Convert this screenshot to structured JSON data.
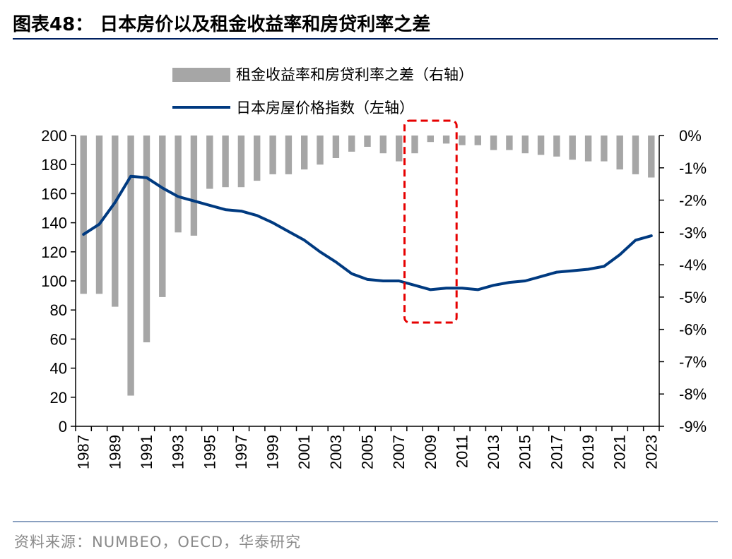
{
  "figure": {
    "title": "图表48：  日本房价以及租金收益率和房贷利率之差",
    "source": "资料来源：NUMBEO，OECD，华泰研究"
  },
  "colors": {
    "bar": "#a6a6a6",
    "line": "#003a80",
    "highlight": "#e60000",
    "axis": "#000000"
  },
  "chart_data": {
    "type": "bar+line",
    "years": [
      1987,
      1988,
      1989,
      1990,
      1991,
      1992,
      1993,
      1994,
      1995,
      1996,
      1997,
      1998,
      1999,
      2000,
      2001,
      2002,
      2003,
      2004,
      2005,
      2006,
      2007,
      2008,
      2009,
      2010,
      2011,
      2012,
      2013,
      2014,
      2015,
      2016,
      2017,
      2018,
      2019,
      2020,
      2021,
      2022,
      2023
    ],
    "x_tick_labels": [
      "1987",
      "1989",
      "1991",
      "1993",
      "1995",
      "1997",
      "1999",
      "2001",
      "2003",
      "2005",
      "2007",
      "2009",
      "2011",
      "2013",
      "2015",
      "2017",
      "2019",
      "2021",
      "2023"
    ],
    "series": [
      {
        "name": "租金收益率和房贷利率之差（右轴）",
        "type": "bar",
        "axis": "right",
        "unit": "%",
        "values": [
          -4.9,
          -4.9,
          -5.3,
          -8.05,
          -6.4,
          -5.0,
          -3.0,
          -3.1,
          -1.65,
          -1.6,
          -1.6,
          -1.4,
          -1.2,
          -1.2,
          -1.05,
          -0.9,
          -0.7,
          -0.5,
          -0.35,
          -0.55,
          -0.8,
          -0.55,
          -0.2,
          -0.25,
          -0.3,
          -0.3,
          -0.45,
          -0.45,
          -0.55,
          -0.6,
          -0.65,
          -0.75,
          -0.8,
          -0.8,
          -1.05,
          -1.2,
          -1.3
        ]
      },
      {
        "name": "日本房屋价格指数（左轴）",
        "type": "line",
        "axis": "left",
        "values": [
          132,
          139,
          154,
          172,
          171,
          164,
          158,
          155,
          152,
          149,
          148,
          145,
          140,
          134,
          128,
          120,
          113,
          105,
          101,
          100,
          100,
          97,
          94,
          95,
          95,
          94,
          97,
          99,
          100,
          103,
          106,
          107,
          108,
          110,
          118,
          128,
          131
        ]
      }
    ],
    "y_left": {
      "ticks": [
        "200",
        "180",
        "160",
        "140",
        "120",
        "100",
        "80",
        "60",
        "40",
        "20",
        "0"
      ],
      "ylim": [
        0,
        200
      ]
    },
    "y_right": {
      "ticks": [
        "0%",
        "-1%",
        "-2%",
        "-3%",
        "-4%",
        "-5%",
        "-6%",
        "-7%",
        "-8%",
        "-9%"
      ],
      "ylim": [
        -9,
        0
      ]
    },
    "highlight_range": [
      2008,
      2010
    ],
    "legend_position": "top-center"
  }
}
